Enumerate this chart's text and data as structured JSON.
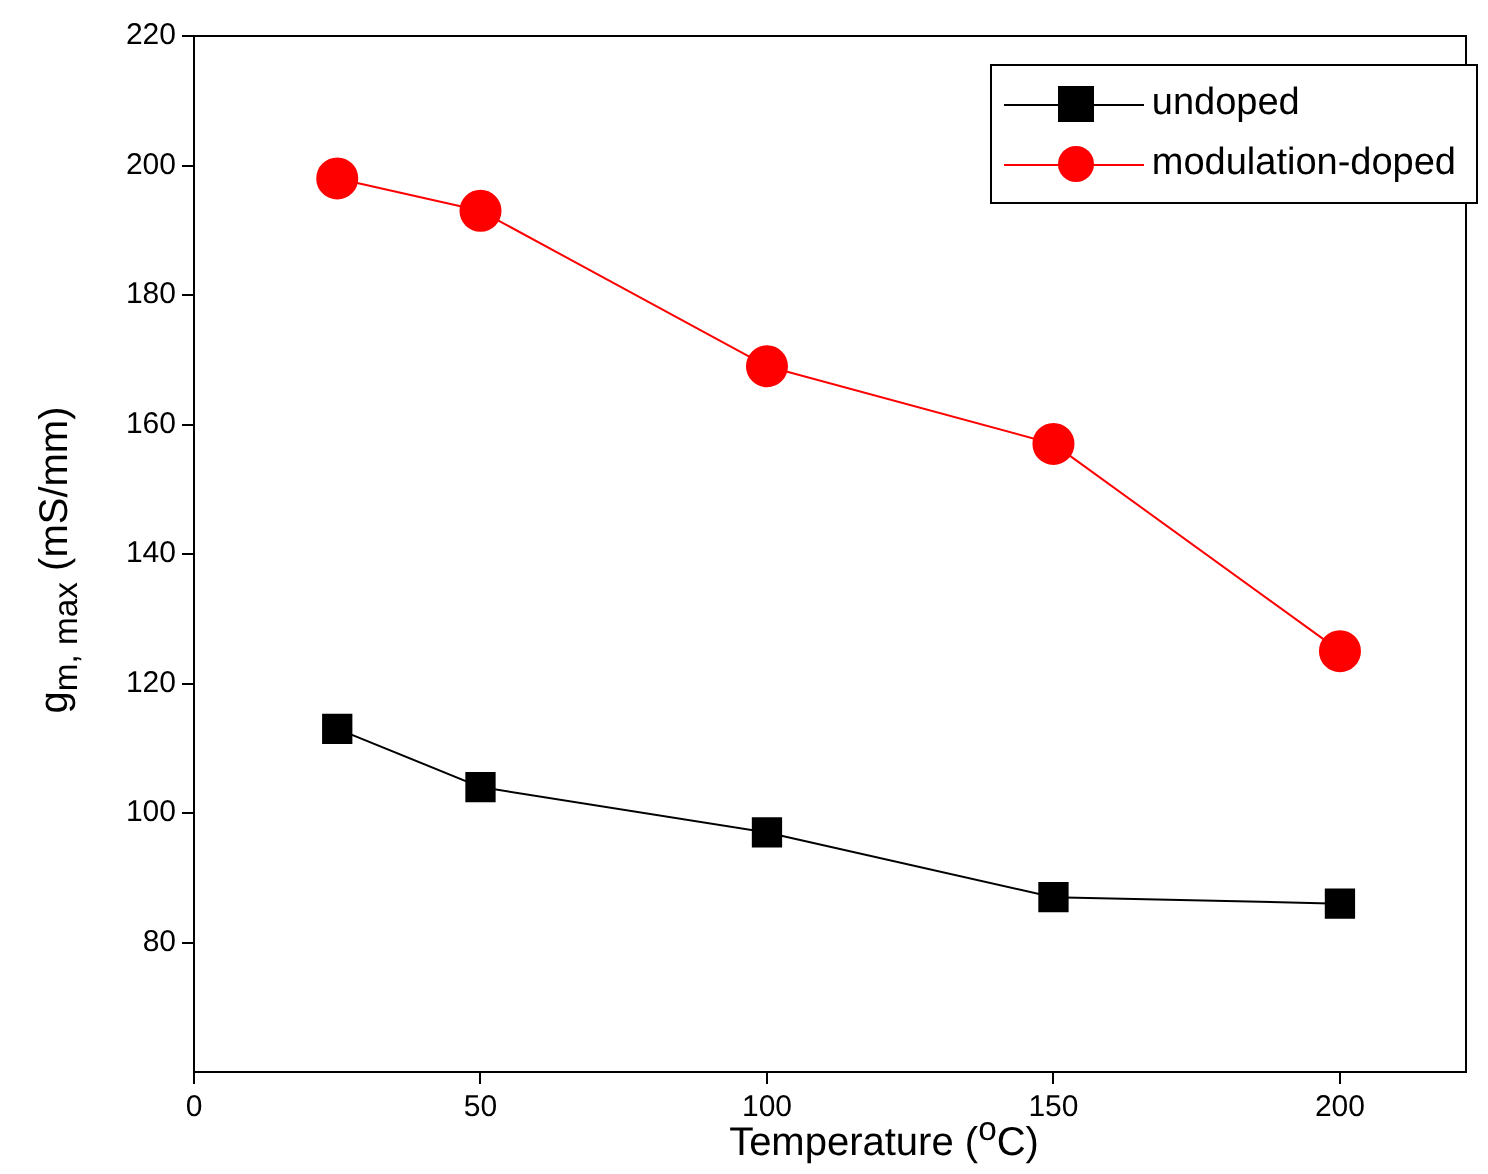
{
  "chart_data": {
    "type": "line",
    "xlabel": "Temperature ($^{o}$C)",
    "ylabel": "g$_{m, max}$ (mS/mm)",
    "x": [
      25,
      50,
      100,
      150,
      200
    ],
    "series": [
      {
        "name": "undoped",
        "color": "#000000",
        "marker": "square",
        "values": [
          113,
          104,
          97,
          87,
          86
        ]
      },
      {
        "name": "modulation-doped",
        "color": "#ff0000",
        "marker": "circle",
        "values": [
          198,
          193,
          169,
          157,
          125
        ]
      }
    ],
    "xlim": [
      0,
      222
    ],
    "xticks": [
      0,
      50,
      100,
      150,
      200
    ],
    "ylim": [
      60,
      220
    ],
    "yticks": [
      80,
      100,
      120,
      140,
      160,
      180,
      200,
      220
    ],
    "grid": false,
    "legend": "top right"
  }
}
